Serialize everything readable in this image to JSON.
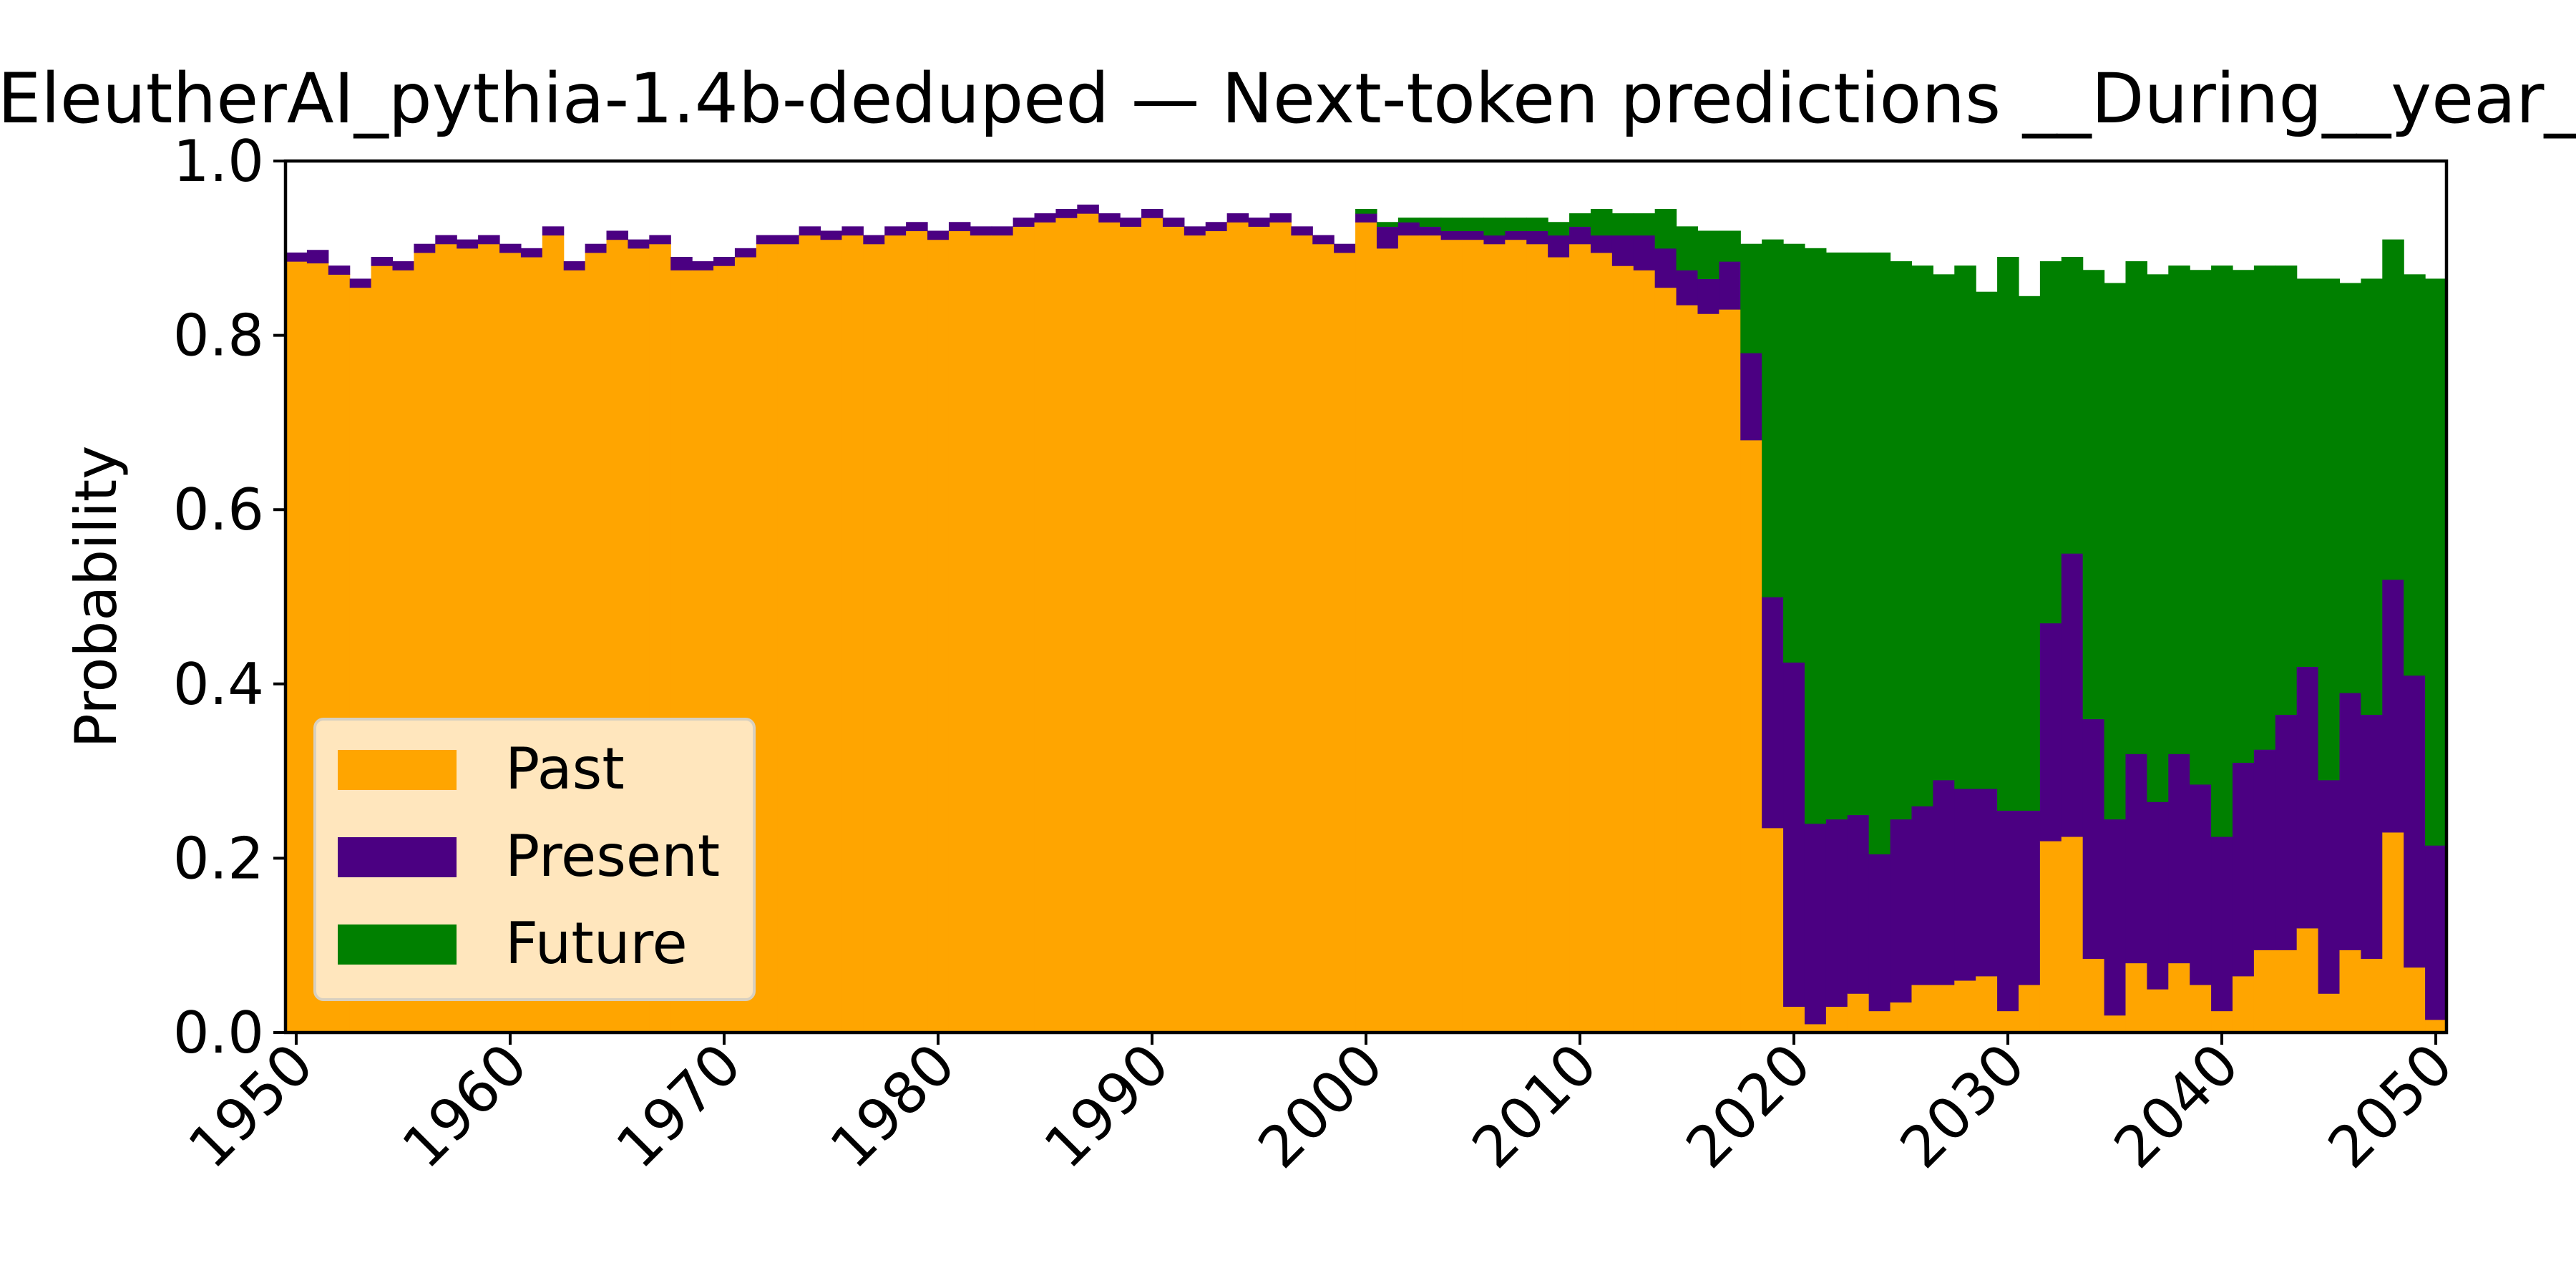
{
  "chart_data": {
    "type": "bar",
    "stacked": true,
    "title": "EleutherAI_pythia-1.4b-deduped — Next-token predictions __During__year_",
    "xlabel": "",
    "ylabel": "Probability",
    "xlim": [
      1949.5,
      2050.5
    ],
    "ylim": [
      0.0,
      1.0
    ],
    "x_ticks": [
      1950,
      1960,
      1970,
      1980,
      1990,
      2000,
      2010,
      2020,
      2030,
      2040,
      2050
    ],
    "y_ticks": [
      0.0,
      0.2,
      0.4,
      0.6,
      0.8,
      1.0
    ],
    "y_tick_labels": [
      "0.0",
      "0.2",
      "0.4",
      "0.6",
      "0.8",
      "1.0"
    ],
    "grid": false,
    "legend_position": "lower-left",
    "x_start": 1950,
    "x_step": 1,
    "series": [
      {
        "name": "Past",
        "color": "#FFA500",
        "values": [
          0.885,
          0.883,
          0.87,
          0.855,
          0.88,
          0.875,
          0.895,
          0.905,
          0.9,
          0.905,
          0.895,
          0.89,
          0.915,
          0.875,
          0.895,
          0.91,
          0.9,
          0.905,
          0.875,
          0.875,
          0.88,
          0.89,
          0.905,
          0.905,
          0.915,
          0.91,
          0.915,
          0.905,
          0.915,
          0.92,
          0.91,
          0.92,
          0.915,
          0.915,
          0.925,
          0.93,
          0.935,
          0.94,
          0.93,
          0.925,
          0.935,
          0.925,
          0.915,
          0.92,
          0.93,
          0.925,
          0.93,
          0.915,
          0.905,
          0.895,
          0.93,
          0.9,
          0.915,
          0.915,
          0.91,
          0.91,
          0.905,
          0.91,
          0.905,
          0.89,
          0.905,
          0.895,
          0.88,
          0.875,
          0.855,
          0.835,
          0.825,
          0.83,
          0.68,
          0.235,
          0.03,
          0.01,
          0.03,
          0.045,
          0.025,
          0.035,
          0.055,
          0.055,
          0.06,
          0.065,
          0.025,
          0.055,
          0.22,
          0.225,
          0.085,
          0.02,
          0.08,
          0.05,
          0.08,
          0.055,
          0.025,
          0.065,
          0.095,
          0.095,
          0.12,
          0.045,
          0.095,
          0.085,
          0.23,
          0.075,
          0.015
        ]
      },
      {
        "name": "Present",
        "color": "#4B0082",
        "values": [
          0.01,
          0.015,
          0.01,
          0.01,
          0.01,
          0.01,
          0.01,
          0.01,
          0.01,
          0.01,
          0.01,
          0.01,
          0.01,
          0.01,
          0.01,
          0.01,
          0.01,
          0.01,
          0.015,
          0.01,
          0.01,
          0.01,
          0.01,
          0.01,
          0.01,
          0.01,
          0.01,
          0.01,
          0.01,
          0.01,
          0.01,
          0.01,
          0.01,
          0.01,
          0.01,
          0.01,
          0.01,
          0.01,
          0.01,
          0.01,
          0.01,
          0.01,
          0.01,
          0.01,
          0.01,
          0.01,
          0.01,
          0.01,
          0.01,
          0.01,
          0.01,
          0.025,
          0.015,
          0.01,
          0.01,
          0.01,
          0.01,
          0.01,
          0.015,
          0.025,
          0.02,
          0.02,
          0.035,
          0.04,
          0.045,
          0.04,
          0.04,
          0.055,
          0.1,
          0.265,
          0.395,
          0.23,
          0.215,
          0.205,
          0.18,
          0.21,
          0.205,
          0.235,
          0.22,
          0.215,
          0.23,
          0.2,
          0.25,
          0.325,
          0.275,
          0.225,
          0.24,
          0.215,
          0.24,
          0.23,
          0.2,
          0.245,
          0.23,
          0.27,
          0.3,
          0.245,
          0.295,
          0.28,
          0.29,
          0.335,
          0.2
        ]
      },
      {
        "name": "Future",
        "color": "#008000",
        "values": [
          0.0,
          0.0,
          0.0,
          0.0,
          0.0,
          0.0,
          0.0,
          0.0,
          0.0,
          0.0,
          0.0,
          0.0,
          0.0,
          0.0,
          0.0,
          0.0,
          0.0,
          0.0,
          0.0,
          0.0,
          0.0,
          0.0,
          0.0,
          0.0,
          0.0,
          0.0,
          0.0,
          0.0,
          0.0,
          0.0,
          0.0,
          0.0,
          0.0,
          0.0,
          0.0,
          0.0,
          0.0,
          0.0,
          0.0,
          0.0,
          0.0,
          0.0,
          0.0,
          0.0,
          0.0,
          0.0,
          0.0,
          0.0,
          0.0,
          0.0,
          0.005,
          0.005,
          0.005,
          0.01,
          0.015,
          0.015,
          0.02,
          0.015,
          0.015,
          0.015,
          0.015,
          0.03,
          0.025,
          0.025,
          0.045,
          0.05,
          0.055,
          0.035,
          0.125,
          0.41,
          0.48,
          0.66,
          0.65,
          0.645,
          0.69,
          0.64,
          0.62,
          0.58,
          0.6,
          0.57,
          0.635,
          0.59,
          0.415,
          0.34,
          0.515,
          0.615,
          0.565,
          0.605,
          0.56,
          0.59,
          0.655,
          0.565,
          0.555,
          0.515,
          0.445,
          0.575,
          0.47,
          0.5,
          0.39,
          0.46,
          0.65
        ]
      }
    ]
  }
}
